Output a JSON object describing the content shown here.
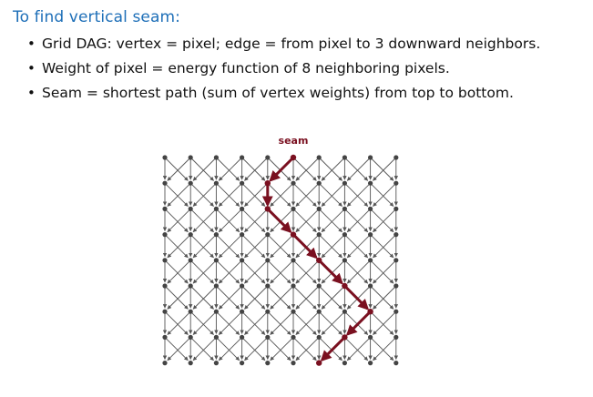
{
  "heading": "To find vertical seam:",
  "bullets": [
    "Grid DAG: vertex = pixel; edge = from pixel to 3 downward neighbors.",
    "Weight of pixel = energy function of 8 neighboring pixels.",
    "Seam = shortest path (sum of vertex weights) from top to bottom."
  ],
  "bullet_glyph": "•",
  "diagram": {
    "seam_label": "seam",
    "columns": 10,
    "rows": 9,
    "seam_columns": [
      5,
      4,
      4,
      5,
      6,
      7,
      8,
      7,
      6
    ],
    "colors": {
      "grid": "#555555",
      "node": "#444444",
      "seam": "#7a1020"
    }
  }
}
